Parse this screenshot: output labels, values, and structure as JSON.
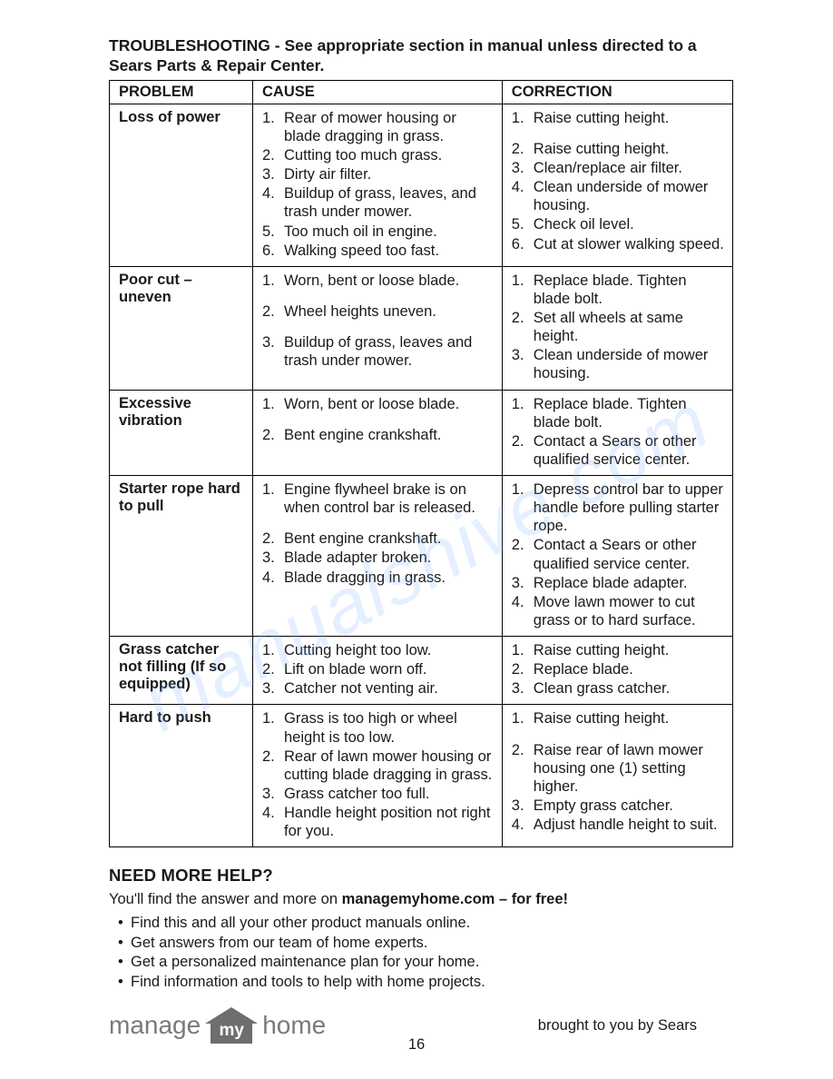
{
  "heading": "TROUBLESHOOTING - See appropriate section in manual unless directed to a Sears Parts & Repair Center.",
  "table": {
    "headers": [
      "PROBLEM",
      "CAUSE",
      "CORRECTION"
    ],
    "rows": [
      {
        "problem": "Loss of power",
        "causes": [
          "Rear of mower housing or blade dragging in grass.",
          "Cutting too much grass.",
          "Dirty air filter.",
          "Buildup of grass, leaves, and trash under mower.",
          "Too much oil in engine.",
          "Walking speed too fast."
        ],
        "corrections": [
          "Raise cutting height.",
          "Raise cutting height.",
          "Clean/replace air filter.",
          "Clean underside of mower housing.",
          "Check oil level.",
          "Cut at slower walking speed."
        ]
      },
      {
        "problem": "Poor cut – uneven",
        "causes": [
          "Worn, bent or loose blade.",
          "Wheel heights uneven.",
          "Buildup of grass, leaves and trash under mower."
        ],
        "corrections": [
          "Replace blade. Tighten blade bolt.",
          "Set all wheels at same height.",
          "Clean underside of mower housing."
        ]
      },
      {
        "problem": "Excessive vibration",
        "causes": [
          "Worn, bent or loose blade.",
          "Bent engine crankshaft."
        ],
        "corrections": [
          "Replace blade. Tighten blade bolt.",
          "Contact a Sears or other qualified service center."
        ]
      },
      {
        "problem": "Starter rope hard to pull",
        "causes": [
          "Engine flywheel brake is on when control bar is released.",
          "Bent engine crankshaft.",
          "Blade adapter broken.",
          "Blade dragging in grass."
        ],
        "corrections": [
          "Depress control bar to upper handle before pulling starter rope.",
          "Contact a Sears or other qualified service center.",
          "Replace blade adapter.",
          "Move lawn mower to cut grass or to hard surface."
        ]
      },
      {
        "problem": "Grass catcher not filling (If so equipped)",
        "causes": [
          "Cutting height too low.",
          "Lift on blade worn off.",
          "Catcher not venting air."
        ],
        "corrections": [
          "Raise cutting height.",
          "Replace blade.",
          "Clean grass catcher."
        ]
      },
      {
        "problem": "Hard to push",
        "causes": [
          "Grass is too high or wheel height is too low.",
          "Rear of lawn mower housing or cutting blade dragging in grass.",
          "Grass catcher too full.",
          "Handle height position not right for you."
        ],
        "corrections": [
          "Raise cutting height.",
          "Raise rear of lawn mower housing one (1) setting higher.",
          "Empty grass catcher.",
          "Adjust handle height to suit."
        ]
      }
    ]
  },
  "help": {
    "heading": "NEED MORE HELP?",
    "intro_prefix": "You'll find the answer and more on ",
    "intro_bold": "managemyhome.com – for free!",
    "bullets": [
      "Find this and all your other product manuals online.",
      "Get answers from our team of home experts.",
      "Get a personalized maintenance plan for your home.",
      "Find information and tools to help with home projects."
    ]
  },
  "logo": {
    "word1": "manage",
    "word2": "my",
    "word3": "home",
    "house_fill": "#6e6e6e"
  },
  "brought": "brought to you by Sears",
  "page_number": "16",
  "watermark_text": "manualshive.com",
  "colors": {
    "text": "#1a1a1a",
    "border": "#000000",
    "logo_grey": "#7a7a7a",
    "watermark": "#6fa8ff"
  },
  "cause_spacing": {
    "1": [
      0,
      0,
      0,
      0,
      0,
      0
    ],
    "2": [
      0,
      14,
      14
    ],
    "3": [
      0,
      14
    ],
    "4": [
      0,
      14,
      0,
      0
    ],
    "5": [
      0,
      0,
      0
    ],
    "6": [
      0,
      0,
      0,
      0
    ]
  },
  "corr_spacing": {
    "1": [
      0,
      14,
      0,
      0,
      0,
      0
    ],
    "6": [
      0,
      14,
      0,
      0
    ]
  }
}
